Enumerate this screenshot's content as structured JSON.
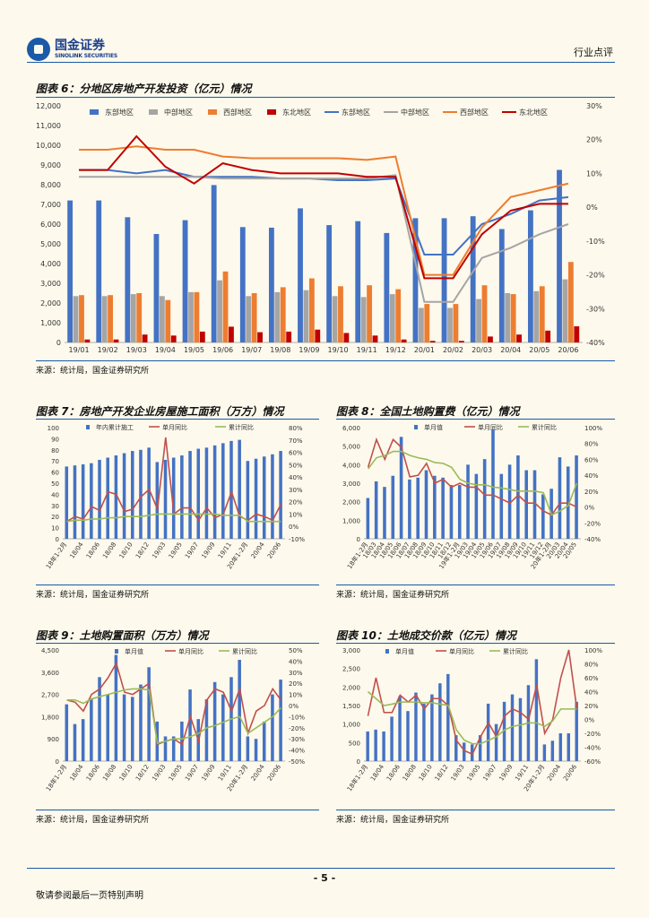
{
  "header": {
    "logo_cn": "国金证券",
    "logo_en": "SINOLINK SECURITIES",
    "section": "行业点评"
  },
  "page_number": "- 5 -",
  "disclaimer": "敬请参阅最后一页特别声明",
  "figures": [
    {
      "id": "fig6",
      "title": "图表 6：分地区房地产开发投资（亿元）情况",
      "source": "来源：统计局，国金证券研究所"
    },
    {
      "id": "fig7",
      "title": "图表 7：房地产开发企业房屋施工面积（万方）情况",
      "source": "来源：统计局，国金证券研究所"
    },
    {
      "id": "fig8",
      "title": "图表 8：全国土地购置费（亿元）情况",
      "source": "来源：统计局，国金证券研究所"
    },
    {
      "id": "fig9",
      "title": "图表 9：土地购置面积（万方）情况",
      "source": "来源：统计局，国金证券研究所"
    },
    {
      "id": "fig10",
      "title": "图表 10：土地成交价款（亿元）情况",
      "source": "来源：统计局，国金证券研究所"
    }
  ],
  "chart_data": [
    {
      "id": "fig6",
      "type": "bar+line",
      "categories": [
        "19/01",
        "19/02",
        "19/03",
        "19/04",
        "19/05",
        "19/06",
        "19/07",
        "19/08",
        "19/09",
        "19/10",
        "19/11",
        "19/12",
        "20/01",
        "20/02",
        "20/03",
        "20/04",
        "20/05",
        "20/06"
      ],
      "ylim": [
        0,
        12000
      ],
      "yticks": [
        "0",
        "1,000",
        "2,000",
        "3,000",
        "4,000",
        "5,000",
        "6,000",
        "7,000",
        "8,000",
        "9,000",
        "10,000",
        "11,000",
        "12,000"
      ],
      "y2lim": [
        -40,
        30
      ],
      "y2ticks": [
        "-40%",
        "-30%",
        "-20%",
        "-10%",
        "0%",
        "10%",
        "20%",
        "30%"
      ],
      "bars": [
        {
          "name": "东部地区",
          "color": "#4472c4",
          "values": [
            7200,
            7200,
            6350,
            5500,
            6200,
            7980,
            5850,
            5820,
            6800,
            5950,
            6150,
            5550,
            6300,
            6300,
            6400,
            5750,
            6700,
            8750
          ]
        },
        {
          "name": "中部地区",
          "color": "#a5a5a5",
          "values": [
            2350,
            2350,
            2450,
            2350,
            2550,
            3150,
            2350,
            2550,
            2650,
            2350,
            2300,
            2450,
            1750,
            1750,
            2200,
            2500,
            2600,
            3200
          ]
        },
        {
          "name": "西部地区",
          "color": "#ed7d31",
          "values": [
            2400,
            2400,
            2500,
            2150,
            2550,
            3600,
            2500,
            2800,
            3250,
            2850,
            2900,
            2700,
            1950,
            1950,
            2900,
            2450,
            2850,
            4080
          ]
        },
        {
          "name": "东北地区",
          "color": "#c00000",
          "values": [
            150,
            150,
            400,
            350,
            550,
            800,
            520,
            550,
            650,
            480,
            350,
            150,
            80,
            80,
            300,
            400,
            600,
            820
          ]
        }
      ],
      "lines": [
        {
          "name": "东部地区",
          "color": "#4472c4",
          "values": [
            11,
            11,
            10,
            11,
            9,
            9,
            9,
            8.5,
            8.5,
            8,
            8,
            8.5,
            -14,
            -14,
            -5,
            -2,
            2,
            3
          ]
        },
        {
          "name": "中部地区",
          "color": "#a5a5a5",
          "values": [
            9,
            9,
            9,
            9,
            9,
            8.5,
            8.5,
            8.5,
            8.5,
            8.5,
            8.5,
            9.5,
            -28,
            -28,
            -15,
            -12,
            -8,
            -5
          ]
        },
        {
          "name": "西部地区",
          "color": "#ed7d31",
          "values": [
            17,
            17,
            18,
            17,
            17,
            15,
            14.5,
            14.5,
            14.5,
            14.5,
            14,
            15,
            -20,
            -20,
            -6,
            3,
            5,
            7
          ]
        },
        {
          "name": "东北地区",
          "color": "#c00000",
          "values": [
            11,
            11,
            21,
            12,
            7,
            13,
            11,
            10,
            10,
            10,
            9,
            9,
            -21,
            -21,
            -8,
            -1,
            1,
            1
          ]
        }
      ]
    },
    {
      "id": "fig7",
      "type": "bar+line",
      "categories": [
        "18年1-2月",
        "18/03",
        "18/04",
        "18/05",
        "18/06",
        "18/07",
        "18/08",
        "18/09",
        "18/10",
        "18/11",
        "18/12",
        "19年1-2月",
        "19/03",
        "19/04",
        "19/05",
        "19/06",
        "19/07",
        "19/08",
        "19/09",
        "19/10",
        "19/11",
        "19/12",
        "20年1-2月",
        "20/03",
        "20/04",
        "20/05",
        "20/06"
      ],
      "xticks": [
        "18年1-2月",
        "18/04",
        "18/06",
        "18/08",
        "18/10",
        "18/12",
        "19/03",
        "19/05",
        "19/07",
        "19/09",
        "19/11",
        "20年1-2月",
        "20/04",
        "20/06"
      ],
      "ylim": [
        0,
        100
      ],
      "yticks": [
        "0",
        "10",
        "20",
        "30",
        "40",
        "50",
        "60",
        "70",
        "80",
        "90",
        "100"
      ],
      "y2lim": [
        -10,
        80
      ],
      "y2ticks": [
        "-10%",
        "0%",
        "10%",
        "20%",
        "30%",
        "40%",
        "50%",
        "60%",
        "70%",
        "80%"
      ],
      "bars": [
        {
          "name": "年内累计施工",
          "color": "#4472c4",
          "values": [
            65,
            66,
            67,
            68,
            71,
            73,
            75,
            77,
            79,
            80,
            82,
            69,
            71,
            73,
            75,
            79,
            81,
            82,
            84,
            86,
            88,
            89,
            70,
            72,
            74,
            76,
            79
          ]
        }
      ],
      "lines": [
        {
          "name": "单月同比",
          "color": "#c0504d",
          "values": [
            4,
            8,
            6,
            16,
            13,
            28,
            26,
            12,
            14,
            24,
            30,
            14,
            72,
            10,
            15,
            15,
            5,
            15,
            7,
            10,
            28,
            8,
            5,
            10,
            8,
            5,
            18
          ]
        },
        {
          "name": "累计同比",
          "color": "#9bbb59",
          "values": [
            4,
            5,
            5,
            6,
            6,
            7,
            7,
            8,
            8,
            8,
            9,
            10,
            10,
            10,
            10,
            10,
            10,
            10,
            10,
            9,
            9,
            9,
            4,
            4,
            4,
            4,
            4
          ]
        }
      ],
      "legend": [
        "年内累计施工",
        "单月同比",
        "累计同比"
      ]
    },
    {
      "id": "fig8",
      "type": "bar+line",
      "categories": [
        "18年1-2月",
        "18/03",
        "18/04",
        "18/05",
        "18/06",
        "18/07",
        "18/08",
        "18/09",
        "18/10",
        "18/11",
        "18/12",
        "19年1-2月",
        "19/03",
        "19/04",
        "19/05",
        "19/06",
        "19/07",
        "19/08",
        "19/09",
        "19/10",
        "19/11",
        "19/12",
        "20年1-2月",
        "20/03",
        "20/04",
        "20/05"
      ],
      "xticks": [
        "18年1-2月",
        "18/03",
        "18/04",
        "18/05",
        "18/06",
        "18/07",
        "18/08",
        "18/09",
        "18/10",
        "18/11",
        "18/12",
        "19年1-2月",
        "19/03",
        "19/04",
        "19/05",
        "19/06",
        "19/07",
        "19/08",
        "19/09",
        "19/10",
        "19/11",
        "19/12",
        "20年1-2月",
        "20/03",
        "20/04",
        "20/05"
      ],
      "ylim": [
        0,
        6000
      ],
      "yticks": [
        "0",
        "1,000",
        "2,000",
        "3,000",
        "4,000",
        "5,000",
        "6,000"
      ],
      "y2lim": [
        -40,
        100
      ],
      "y2ticks": [
        "-40%",
        "-20%",
        "0%",
        "20%",
        "40%",
        "60%",
        "80%",
        "100%"
      ],
      "bars": [
        {
          "name": "单月值",
          "color": "#4472c4",
          "values": [
            2200,
            3100,
            2800,
            3400,
            5500,
            3200,
            3300,
            3700,
            3400,
            3300,
            2900,
            2900,
            4000,
            3500,
            4300,
            5900,
            3500,
            4000,
            4500,
            3700,
            3700,
            2400,
            2700,
            4400,
            3900,
            4500
          ]
        }
      ],
      "lines": [
        {
          "name": "单月同比",
          "color": "#c0504d",
          "values": [
            50,
            85,
            60,
            85,
            75,
            38,
            40,
            55,
            30,
            35,
            25,
            30,
            25,
            25,
            15,
            15,
            10,
            5,
            15,
            5,
            5,
            -5,
            -10,
            5,
            5,
            0
          ]
        },
        {
          "name": "累计同比",
          "color": "#9bbb59",
          "values": [
            48,
            62,
            65,
            70,
            70,
            65,
            62,
            60,
            56,
            55,
            50,
            35,
            30,
            28,
            28,
            25,
            24,
            22,
            20,
            20,
            20,
            18,
            -10,
            -5,
            2,
            30
          ]
        }
      ],
      "legend": [
        "单月值",
        "单月同比",
        "累计同比"
      ]
    },
    {
      "id": "fig9",
      "type": "bar+line",
      "categories": [
        "18年1-2月",
        "18/03",
        "18/04",
        "18/05",
        "18/06",
        "18/07",
        "18/08",
        "18/09",
        "18/10",
        "18/11",
        "18/12",
        "19年1-2月",
        "19/03",
        "19/04",
        "19/05",
        "19/06",
        "19/07",
        "19/08",
        "19/09",
        "19/10",
        "19/11",
        "19/12",
        "20年1-2月",
        "20/03",
        "20/04",
        "20/05",
        "20/06"
      ],
      "xticks": [
        "18年1-2月",
        "18/04",
        "18/06",
        "18/08",
        "18/10",
        "18/12",
        "19/03",
        "19/05",
        "19/07",
        "19/09",
        "19/11",
        "20年1-2月",
        "20/04",
        "20/06"
      ],
      "ylim": [
        0,
        4500
      ],
      "yticks": [
        "0",
        "900",
        "1,800",
        "2,700",
        "3,600",
        "4,500"
      ],
      "y2lim": [
        -50,
        50
      ],
      "y2ticks": [
        "-50%",
        "-40%",
        "-30%",
        "-20%",
        "-10%",
        "0%",
        "10%",
        "20%",
        "30%",
        "40%",
        "50%"
      ],
      "bars": [
        {
          "name": "单月值",
          "color": "#4472c4",
          "values": [
            2300,
            1500,
            1700,
            2500,
            3400,
            2700,
            4300,
            2700,
            2600,
            3100,
            3800,
            1600,
            1000,
            1000,
            1600,
            2900,
            1700,
            2500,
            3200,
            2700,
            3400,
            4100,
            1000,
            900,
            1600,
            2700,
            3300
          ]
        }
      ],
      "lines": [
        {
          "name": "单月同比",
          "color": "#c0504d",
          "values": [
            5,
            3,
            -5,
            10,
            15,
            25,
            38,
            12,
            10,
            15,
            20,
            -35,
            -32,
            -30,
            -35,
            -10,
            -32,
            5,
            15,
            12,
            -5,
            15,
            -25,
            -5,
            0,
            15,
            5
          ]
        },
        {
          "name": "累计同比",
          "color": "#9bbb59",
          "values": [
            5,
            5,
            2,
            6,
            8,
            10,
            12,
            14,
            15,
            15,
            14,
            -34,
            -32,
            -30,
            -30,
            -28,
            -25,
            -20,
            -18,
            -15,
            -12,
            -10,
            -25,
            -20,
            -15,
            -10,
            -2
          ]
        }
      ],
      "legend": [
        "单月值",
        "单月同比",
        "累计同比"
      ]
    },
    {
      "id": "fig10",
      "type": "bar+line",
      "categories": [
        "18年1-2月",
        "18/03",
        "18/04",
        "18/05",
        "18/06",
        "18/07",
        "18/08",
        "18/09",
        "18/10",
        "18/11",
        "18/12",
        "19年1-2月",
        "19/03",
        "19/04",
        "19/05",
        "19/06",
        "19/07",
        "19/08",
        "19/09",
        "19/10",
        "19/11",
        "19/12",
        "20年1-2月",
        "20/03",
        "20/04",
        "20/05",
        "20/06"
      ],
      "xticks": [
        "18年1-2月",
        "18/04",
        "18/06",
        "18/08",
        "18/10",
        "18/12",
        "19/03",
        "19/05",
        "19/07",
        "19/09",
        "19/11",
        "20年1-2月",
        "20/04",
        "20/06"
      ],
      "ylim": [
        0,
        3000
      ],
      "yticks": [
        "0",
        "500",
        "1,000",
        "1,500",
        "2,000",
        "2,500",
        "3,000"
      ],
      "y2lim": [
        -60,
        100
      ],
      "y2ticks": [
        "-60%",
        "-40%",
        "-20%",
        "0%",
        "20%",
        "40%",
        "60%",
        "80%",
        "100%"
      ],
      "bars": [
        {
          "name": "单月值",
          "color": "#4472c4",
          "values": [
            800,
            850,
            800,
            1200,
            1750,
            1350,
            1850,
            1550,
            1800,
            2100,
            2350,
            700,
            500,
            450,
            700,
            1550,
            1000,
            1600,
            1800,
            1700,
            2050,
            2750,
            450,
            550,
            750,
            750,
            1600
          ]
        }
      ],
      "lines": [
        {
          "name": "单月同比",
          "color": "#c0504d",
          "values": [
            5,
            60,
            10,
            10,
            35,
            25,
            35,
            15,
            30,
            30,
            20,
            -30,
            -45,
            -50,
            -25,
            -5,
            -25,
            5,
            15,
            10,
            0,
            50,
            -20,
            0,
            60,
            100,
            15
          ]
        },
        {
          "name": "累计同比",
          "color": "#9bbb59",
          "values": [
            40,
            30,
            20,
            22,
            25,
            25,
            25,
            24,
            24,
            22,
            20,
            -15,
            -30,
            -35,
            -35,
            -30,
            -25,
            -15,
            -10,
            -8,
            -5,
            -5,
            -10,
            -2,
            15,
            15,
            15
          ]
        }
      ],
      "legend": [
        "单月值",
        "单月同比",
        "累计同比"
      ]
    }
  ]
}
